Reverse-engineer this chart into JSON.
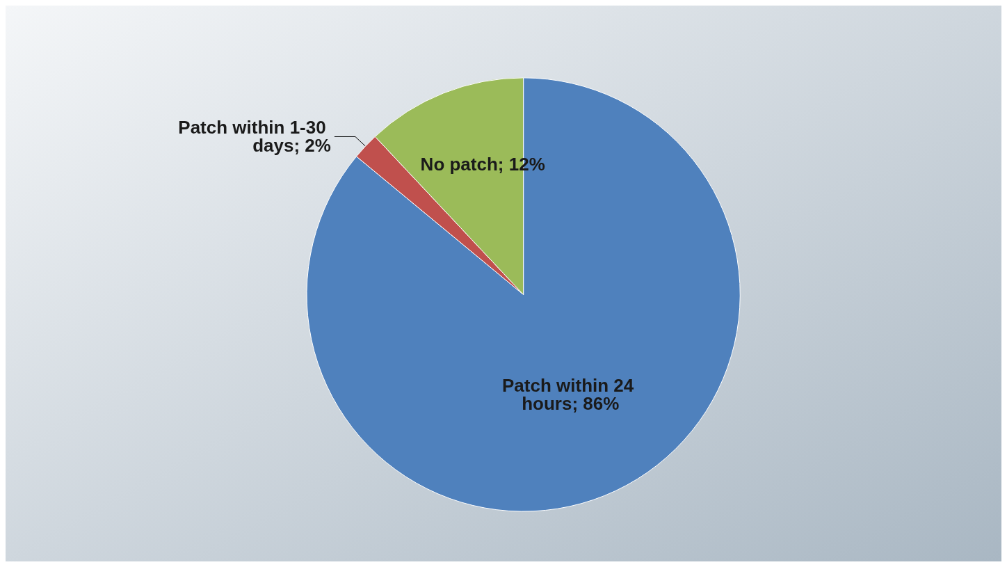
{
  "chart_data": {
    "type": "pie",
    "categories": [
      "Patch within 24 hours",
      "Patch within 1-30 days",
      "No patch"
    ],
    "values": [
      86,
      2,
      12
    ],
    "colors": [
      "#4f81bd",
      "#c0504d",
      "#9bbb59"
    ],
    "value_labels": [
      "86%",
      "2%",
      "12%"
    ],
    "legend": false
  }
}
